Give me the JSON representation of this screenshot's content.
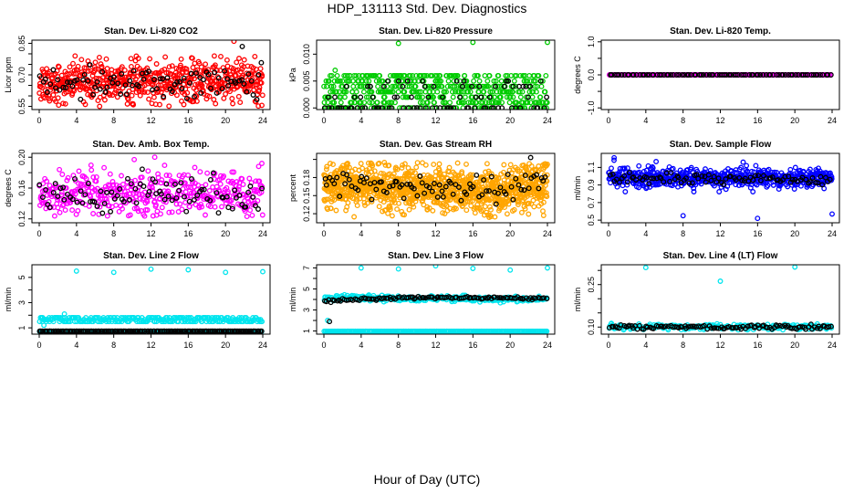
{
  "title": "HDP_131113  Std. Dev. Diagnostics",
  "x_label": "Hour of Day (UTC)",
  "colors": {
    "axis": "#000000",
    "red": "#ff0000",
    "green": "#00cc00",
    "magenta": "#ff00ff",
    "orange": "#ffa500",
    "blue": "#0000ff",
    "cyan": "#00e5ee",
    "black": "#000000"
  },
  "chart_data": [
    {
      "type": "scatter",
      "title": "Stan. Dev. Li-820 CO2",
      "ylabel": "Licor ppm",
      "xlim": [
        0,
        24
      ],
      "ylim": [
        0.535,
        0.865
      ],
      "x_ticks": [
        "0",
        "4",
        "8",
        "12",
        "16",
        "20",
        "24"
      ],
      "y_ticks": [
        "0.55",
        "0.60",
        "0.65",
        "0.70",
        "0.75",
        "0.80",
        "0.85"
      ],
      "y_tick_values": [
        0.55,
        0.6,
        0.65,
        0.7,
        0.75,
        0.8,
        0.85
      ],
      "y_tick_labels_shown": [
        "0.55",
        "0.70",
        "0.85"
      ],
      "y_tick_label_values": [
        0.55,
        0.7,
        0.85
      ],
      "series": [
        {
          "color": "red",
          "n": 600,
          "base": 0.665,
          "spread": 0.05,
          "trend": [
            {
              "x": 0,
              "y": 0.665
            },
            {
              "x": 24,
              "y": 0.665
            }
          ],
          "min": 0.55,
          "max": 0.79,
          "outliers": [
            {
              "x": 20.9,
              "y": 0.86
            },
            {
              "x": 23.9,
              "y": 0.555
            },
            {
              "x": 7.2,
              "y": 0.775
            },
            {
              "x": 18.8,
              "y": 0.79
            }
          ]
        },
        {
          "color": "black",
          "n": 90,
          "base": 0.66,
          "spread": 0.035,
          "min": 0.58,
          "max": 0.78,
          "outliers": [
            {
              "x": 21.8,
              "y": 0.835
            }
          ]
        }
      ]
    },
    {
      "type": "scatter",
      "title": "Stan. Dev. Li-820 Pressure",
      "ylabel": "kPa",
      "xlim": [
        0,
        24
      ],
      "ylim": [
        -0.0003,
        0.0126
      ],
      "x_ticks": [
        "0",
        "4",
        "8",
        "12",
        "16",
        "20",
        "24"
      ],
      "y_ticks": [
        "0.000",
        "0.005",
        "0.010"
      ],
      "y_tick_values": [
        0.0,
        0.005,
        0.01
      ],
      "y_tick_labels_shown": [
        "0.000",
        "0.005",
        "0.010"
      ],
      "y_tick_label_values": [
        0.0,
        0.005,
        0.01
      ],
      "series": [
        {
          "color": "green",
          "n": 550,
          "levels": [
            0.0,
            0.001,
            0.002,
            0.003,
            0.004,
            0.005,
            0.006
          ],
          "min": 0.0,
          "max": 0.0062,
          "outliers": [
            {
              "x": 8.0,
              "y": 0.012
            },
            {
              "x": 16.0,
              "y": 0.0122
            },
            {
              "x": 24.0,
              "y": 0.0122
            },
            {
              "x": 1.2,
              "y": 0.007
            }
          ]
        },
        {
          "color": "black",
          "n": 90,
          "levels": [
            0.0,
            0.0,
            0.0,
            0.002,
            0.004,
            0.005
          ],
          "min": 0.0,
          "max": 0.006,
          "outliers": []
        }
      ]
    },
    {
      "type": "scatter",
      "title": "Stan. Dev. Li-820 Temp.",
      "ylabel": "degrees C",
      "xlim": [
        0,
        24
      ],
      "ylim": [
        -1.05,
        1.05
      ],
      "x_ticks": [
        "0",
        "4",
        "8",
        "12",
        "16",
        "20",
        "24"
      ],
      "y_ticks": [
        "-1.0",
        "-0.5",
        "0.0",
        "0.5",
        "1.0"
      ],
      "y_tick_values": [
        -1.0,
        -0.5,
        0.0,
        0.5,
        1.0
      ],
      "y_tick_labels_shown": [
        "-1.0",
        "0.0",
        "1.0"
      ],
      "y_tick_label_values": [
        -1.0,
        0.0,
        1.0
      ],
      "series": [
        {
          "color": "magenta",
          "n": 160,
          "constant": 0.0,
          "outliers": []
        },
        {
          "color": "black",
          "n": 90,
          "constant": 0.0,
          "outliers": []
        }
      ]
    },
    {
      "type": "scatter",
      "title": "Stan. Dev. Amb. Box Temp.",
      "ylabel": "degrees C",
      "xlim": [
        0,
        24
      ],
      "ylim": [
        0.115,
        0.205
      ],
      "x_ticks": [
        "0",
        "4",
        "8",
        "12",
        "16",
        "20",
        "24"
      ],
      "y_ticks": [
        "0.12",
        "0.14",
        "0.16",
        "0.18",
        "0.20"
      ],
      "y_tick_values": [
        0.12,
        0.14,
        0.16,
        0.18,
        0.2
      ],
      "y_tick_labels_shown": [
        "0.12",
        "0.16",
        "0.20"
      ],
      "y_tick_label_values": [
        0.12,
        0.16,
        0.2
      ],
      "series": [
        {
          "color": "magenta",
          "n": 430,
          "base": 0.153,
          "spread": 0.014,
          "min": 0.123,
          "max": 0.192,
          "outliers": [
            {
              "x": 12.4,
              "y": 0.2
            },
            {
              "x": 10.2,
              "y": 0.197
            },
            {
              "x": 23.9,
              "y": 0.192
            }
          ]
        },
        {
          "color": "black",
          "n": 90,
          "base": 0.152,
          "spread": 0.012,
          "min": 0.126,
          "max": 0.19,
          "outliers": []
        }
      ]
    },
    {
      "type": "scatter",
      "title": "Stan. Dev. Gas Stream RH",
      "ylabel": "percent",
      "xlim": [
        0,
        24
      ],
      "ylim": [
        0.105,
        0.22
      ],
      "x_ticks": [
        "0",
        "4",
        "8",
        "12",
        "16",
        "20",
        "24"
      ],
      "y_ticks": [
        "0.12",
        "0.15",
        "0.18",
        "0.21"
      ],
      "y_tick_values": [
        0.12,
        0.15,
        0.18,
        0.21
      ],
      "y_tick_labels_shown": [
        "0.12",
        "0.15",
        "0.18"
      ],
      "y_tick_label_values": [
        0.12,
        0.15,
        0.18
      ],
      "series": [
        {
          "color": "orange",
          "n": 1200,
          "trend": [
            {
              "x": 0,
              "y": 0.168
            },
            {
              "x": 12,
              "y": 0.16
            },
            {
              "x": 17,
              "y": 0.155
            },
            {
              "x": 20,
              "y": 0.158
            },
            {
              "x": 24,
              "y": 0.172
            }
          ],
          "spread": 0.018,
          "min": 0.113,
          "max": 0.205,
          "outliers": []
        },
        {
          "color": "black",
          "n": 90,
          "trend": [
            {
              "x": 0,
              "y": 0.172
            },
            {
              "x": 12,
              "y": 0.162
            },
            {
              "x": 17,
              "y": 0.158
            },
            {
              "x": 24,
              "y": 0.175
            }
          ],
          "spread": 0.012,
          "min": 0.13,
          "max": 0.215,
          "outliers": [
            {
              "x": 22.2,
              "y": 0.213
            }
          ]
        }
      ]
    },
    {
      "type": "scatter",
      "title": "Stan. Dev. Sample Flow",
      "ylabel": "ml/min",
      "xlim": [
        0,
        24
      ],
      "ylim": [
        0.47,
        1.26
      ],
      "x_ticks": [
        "0",
        "4",
        "8",
        "12",
        "16",
        "20",
        "24"
      ],
      "y_ticks": [
        "0.5",
        "0.7",
        "0.9",
        "1.1"
      ],
      "y_tick_values": [
        0.5,
        0.7,
        0.9,
        1.1
      ],
      "y_tick_labels_shown": [
        "0.5",
        "0.7",
        "0.9",
        "1.1"
      ],
      "y_tick_label_values": [
        0.5,
        0.7,
        0.9,
        1.1
      ],
      "series": [
        {
          "color": "blue",
          "n": 620,
          "base": 0.985,
          "spread": 0.055,
          "min": 0.82,
          "max": 1.2,
          "outliers": [
            {
              "x": 8.0,
              "y": 0.55
            },
            {
              "x": 16.0,
              "y": 0.52
            },
            {
              "x": 24.0,
              "y": 0.57
            },
            {
              "x": 0.6,
              "y": 1.21
            }
          ]
        },
        {
          "color": "black",
          "n": 90,
          "base": 0.97,
          "spread": 0.03,
          "min": 0.9,
          "max": 1.05,
          "outliers": []
        }
      ]
    },
    {
      "type": "scatter",
      "title": "Stan. Dev. Line 2 Flow",
      "ylabel": "ml/min",
      "xlim": [
        0,
        24
      ],
      "ylim": [
        0.5,
        6.0
      ],
      "x_ticks": [
        "0",
        "4",
        "8",
        "12",
        "16",
        "20",
        "24"
      ],
      "y_ticks": [
        "1",
        "2",
        "3",
        "4",
        "5"
      ],
      "y_tick_values": [
        1,
        2,
        3,
        4,
        5
      ],
      "y_tick_labels_shown": [
        "1",
        "3",
        "5"
      ],
      "y_tick_label_values": [
        1,
        3,
        5
      ],
      "series": [
        {
          "color": "cyan",
          "n": 260,
          "levels": [
            1.5,
            1.65,
            1.8
          ],
          "min": 1.4,
          "max": 2.0,
          "outliers": [
            {
              "x": 4.0,
              "y": 5.5
            },
            {
              "x": 8.0,
              "y": 5.4
            },
            {
              "x": 12.0,
              "y": 5.65
            },
            {
              "x": 16.0,
              "y": 5.6
            },
            {
              "x": 20.0,
              "y": 5.4
            },
            {
              "x": 24.0,
              "y": 5.45
            },
            {
              "x": 0.3,
              "y": 0.7
            },
            {
              "x": 0.5,
              "y": 1.2
            },
            {
              "x": 2.7,
              "y": 2.1
            }
          ]
        },
        {
          "color": "cyan",
          "n": 160,
          "constant": 0.72,
          "outliers": []
        },
        {
          "color": "black",
          "n": 150,
          "constant": 0.74,
          "outliers": []
        }
      ]
    },
    {
      "type": "scatter",
      "title": "Stan. Dev. Line 3 Flow",
      "ylabel": "ml/min",
      "xlim": [
        0,
        24
      ],
      "ylim": [
        0.7,
        7.3
      ],
      "x_ticks": [
        "0",
        "4",
        "8",
        "12",
        "16",
        "20",
        "24"
      ],
      "y_ticks": [
        "1",
        "2",
        "3",
        "4",
        "5",
        "6",
        "7"
      ],
      "y_tick_values": [
        1,
        2,
        3,
        4,
        5,
        6,
        7
      ],
      "y_tick_labels_shown": [
        "1",
        "3",
        "5",
        "7"
      ],
      "y_tick_label_values": [
        1,
        3,
        5,
        7
      ],
      "series": [
        {
          "color": "cyan",
          "n": 320,
          "trend": [
            {
              "x": 0,
              "y": 4.15
            },
            {
              "x": 24,
              "y": 4.0
            }
          ],
          "spread": 0.12,
          "min": 3.6,
          "max": 4.7,
          "outliers": [
            {
              "x": 4.0,
              "y": 7.0
            },
            {
              "x": 8.0,
              "y": 6.9
            },
            {
              "x": 12.0,
              "y": 7.2
            },
            {
              "x": 16.0,
              "y": 6.95
            },
            {
              "x": 20.0,
              "y": 6.8
            },
            {
              "x": 24.0,
              "y": 7.0
            },
            {
              "x": 0.4,
              "y": 2.0
            }
          ]
        },
        {
          "color": "cyan",
          "n": 220,
          "constant": 0.98,
          "outliers": []
        },
        {
          "color": "black",
          "n": 110,
          "trend": [
            {
              "x": 0,
              "y": 3.85
            },
            {
              "x": 9,
              "y": 4.2
            },
            {
              "x": 24,
              "y": 4.1
            }
          ],
          "spread": 0.06,
          "min": 3.7,
          "max": 4.4,
          "outliers": [
            {
              "x": 0.6,
              "y": 1.9
            }
          ]
        }
      ]
    },
    {
      "type": "scatter",
      "title": "Stan. Dev. Line 4 (LT) Flow",
      "ylabel": "ml/min",
      "xlim": [
        0,
        24
      ],
      "ylim": [
        0.075,
        0.32
      ],
      "x_ticks": [
        "0",
        "4",
        "8",
        "12",
        "16",
        "20",
        "24"
      ],
      "y_ticks": [
        "0.10",
        "0.15",
        "0.20",
        "0.25",
        "0.30"
      ],
      "y_tick_values": [
        0.1,
        0.15,
        0.2,
        0.25,
        0.3
      ],
      "y_tick_labels_shown": [
        "0.10",
        "0.25"
      ],
      "y_tick_label_values": [
        0.1,
        0.25
      ],
      "series": [
        {
          "color": "cyan",
          "n": 240,
          "base": 0.1,
          "spread": 0.005,
          "min": 0.09,
          "max": 0.112,
          "outliers": [
            {
              "x": 4.0,
              "y": 0.31
            },
            {
              "x": 12.0,
              "y": 0.262
            },
            {
              "x": 20.0,
              "y": 0.312
            },
            {
              "x": 0.3,
              "y": 0.113
            }
          ]
        },
        {
          "color": "black",
          "n": 110,
          "base": 0.1,
          "spread": 0.004,
          "min": 0.092,
          "max": 0.11,
          "outliers": []
        }
      ]
    }
  ]
}
